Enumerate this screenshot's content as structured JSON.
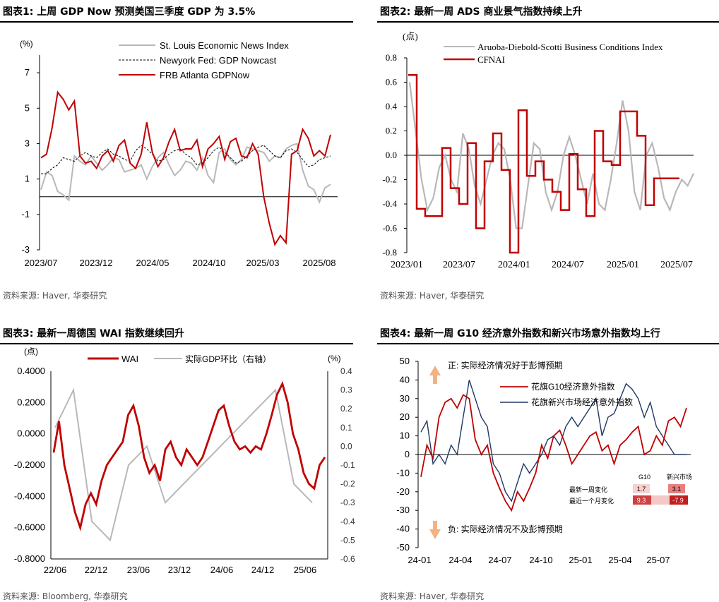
{
  "colors": {
    "red": "#c00000",
    "grey": "#b8b8b8",
    "navy": "#1f3864",
    "dash": "#000000",
    "peach": "#f4b183"
  },
  "chart1": {
    "title": "图表1:  上周 GDP Now 预测美国三季度 GDP 为 3.5%",
    "source": "资料来源: Haver, 华泰研究",
    "unit": "(%)",
    "legend": [
      "St. Louis Economic News Index",
      "Newyork Fed: GDP Nowcast",
      "FRB Atlanta GDPNow"
    ],
    "chart_data": {
      "type": "line",
      "xlabels": [
        "2023/07",
        "2023/12",
        "2024/05",
        "2024/10",
        "2025/03",
        "2025/08"
      ],
      "yticks": [
        "7",
        "5",
        "3",
        "1",
        "-1",
        "-3"
      ],
      "ylim": [
        -3,
        8
      ],
      "series": [
        {
          "name": "St. Louis Economic News Index",
          "values": [
            0.4,
            1.4,
            1.2,
            0.3,
            0.1,
            -0.2,
            2.3,
            2.0,
            1.8,
            2.3,
            1.9,
            1.5,
            1.8,
            2.2,
            2.1,
            1.4,
            1.5,
            1.6,
            1.8,
            1.0,
            1.7,
            2.2,
            2.5,
            1.8,
            1.2,
            1.5,
            2.0,
            1.9,
            1.5,
            2.2,
            1.2,
            0.8,
            2.5,
            2.7,
            2.1,
            1.8,
            2.1,
            2.8,
            2.7,
            2.6,
            2.5,
            2.0,
            2.3,
            2.2,
            2.7,
            2.9,
            3.0,
            1.5,
            0.6,
            0.4,
            -0.3,
            0.5,
            0.7
          ]
        },
        {
          "name": "Newyork Fed: GDP Nowcast",
          "values": [
            1.3,
            1.3,
            1.6,
            1.8,
            2.2,
            2.1,
            2.0,
            2.3,
            2.5,
            2.3,
            2.2,
            2.5,
            2.7,
            2.4,
            2.3,
            2.1,
            2.0,
            2.6,
            2.9,
            2.7,
            2.4,
            2.0,
            2.1,
            2.4,
            2.6,
            2.7,
            2.4,
            2.2,
            1.8,
            1.9,
            2.2,
            2.6,
            2.8,
            2.5,
            2.2,
            1.9,
            2.0,
            2.3,
            2.6,
            2.8,
            2.9,
            2.6,
            2.3,
            2.2,
            2.6,
            2.7,
            2.5,
            2.1,
            1.7,
            1.8,
            2.1,
            2.2,
            2.3
          ]
        },
        {
          "name": "FRB Atlanta GDPNow",
          "values": [
            2.2,
            2.4,
            3.9,
            5.9,
            5.5,
            4.9,
            5.4,
            2.3,
            1.9,
            2.0,
            1.6,
            2.3,
            2.6,
            2.0,
            2.9,
            3.2,
            1.9,
            1.6,
            2.4,
            4.2,
            2.5,
            1.7,
            2.2,
            3.1,
            3.8,
            2.6,
            2.7,
            2.7,
            3.2,
            1.7,
            2.7,
            3.0,
            3.4,
            2.1,
            3.1,
            3.3,
            2.3,
            2.2,
            3.0,
            2.4,
            0.0,
            -1.5,
            -2.7,
            -2.2,
            -2.6,
            2.4,
            2.6,
            3.8,
            3.3,
            2.3,
            2.6,
            2.3,
            3.5
          ]
        }
      ]
    }
  },
  "chart2": {
    "title": "图表2:  最新一周 ADS 商业景气指数持续上升",
    "source": "资料来源: Haver, 华泰研究",
    "unit": "(点)",
    "legend": [
      "Aruoba-Diebold-Scotti Business Conditions Index",
      "CFNAI"
    ],
    "chart_data": {
      "type": "line",
      "xlabels": [
        "2023/01",
        "2023/07",
        "2024/01",
        "2024/07",
        "2025/01",
        "2025/07"
      ],
      "yticks": [
        "0.8",
        "0.6",
        "0.4",
        "0.2",
        "0.0",
        "-0.2",
        "-0.4",
        "-0.6",
        "-0.8"
      ],
      "ylim": [
        -0.8,
        0.8
      ],
      "series": [
        {
          "name": "Aruoba-Diebold-Scotti Business Conditions Index",
          "values": [
            0.6,
            0.2,
            -0.2,
            -0.45,
            -0.35,
            -0.1,
            0.0,
            -0.2,
            -0.3,
            0.18,
            0.05,
            -0.25,
            -0.4,
            -0.2,
            0.0,
            0.1,
            0.05,
            -0.2,
            -0.6,
            -0.6,
            -0.25,
            0.1,
            0.05,
            -0.3,
            -0.45,
            -0.3,
            0.0,
            0.15,
            0.0,
            -0.2,
            -0.4,
            -0.15,
            -0.4,
            -0.45,
            -0.2,
            0.1,
            0.45,
            0.2,
            -0.3,
            -0.45,
            0.0,
            0.1,
            -0.1,
            -0.35,
            -0.45,
            -0.3,
            -0.2,
            -0.25,
            -0.15
          ]
        },
        {
          "name": "CFNAI",
          "values": [
            0.66,
            -0.44,
            -0.5,
            -0.5,
            0.06,
            -0.27,
            -0.4,
            0.1,
            -0.6,
            -0.05,
            0.18,
            -0.12,
            -0.8,
            0.37,
            -0.17,
            -0.05,
            -0.2,
            -0.3,
            -0.45,
            0.01,
            -0.28,
            -0.5,
            0.2,
            -0.05,
            -0.08,
            0.36,
            0.36,
            0.16,
            -0.41,
            -0.19,
            -0.19,
            -0.19
          ]
        }
      ]
    }
  },
  "chart3": {
    "title": "图表3:  最新一周德国 WAI 指数继续回升",
    "source": "资料来源: Bloomberg, 华泰研究",
    "unit_left": "(点)",
    "unit_right": "(%)",
    "legend": [
      "WAI",
      "实际GDP环比（右轴）"
    ],
    "chart_data": {
      "type": "line",
      "xlabels": [
        "22/06",
        "22/12",
        "23/06",
        "23/12",
        "24/06",
        "24/12",
        "25/06"
      ],
      "yticks_left": [
        "0.4000",
        "0.2000",
        "0.0000",
        "-0.2000",
        "-0.4000",
        "-0.6000",
        "-0.8000"
      ],
      "yticks_right": [
        "0.4",
        "0.3",
        "0.2",
        "0.1",
        "0.0",
        "-0.1",
        "-0.2",
        "-0.3",
        "-0.4",
        "-0.5",
        "-0.6"
      ],
      "ylim_left": [
        -0.8,
        0.4
      ],
      "ylim_right": [
        -0.6,
        0.4
      ],
      "series": [
        {
          "name": "WAI",
          "axis": "left",
          "values": [
            -0.12,
            0.08,
            -0.2,
            -0.35,
            -0.5,
            -0.6,
            -0.45,
            -0.38,
            -0.45,
            -0.3,
            -0.2,
            -0.15,
            -0.1,
            -0.05,
            0.12,
            0.18,
            0.05,
            -0.15,
            -0.25,
            -0.2,
            -0.3,
            -0.1,
            -0.05,
            -0.15,
            -0.2,
            -0.1,
            -0.15,
            -0.2,
            -0.15,
            -0.05,
            0.05,
            0.15,
            0.18,
            0.05,
            -0.05,
            -0.1,
            -0.08,
            -0.12,
            -0.08,
            -0.1,
            0.0,
            0.12,
            0.25,
            0.32,
            0.2,
            0.0,
            -0.1,
            -0.25,
            -0.32,
            -0.35,
            -0.2,
            -0.15
          ]
        },
        {
          "name": "实际GDP环比（右轴）",
          "axis": "right",
          "values": [
            0.1,
            0.3,
            -0.4,
            -0.5,
            -0.1,
            0.0,
            -0.3,
            -0.2,
            -0.1,
            0.0,
            0.1,
            0.2,
            0.3,
            -0.2,
            -0.3
          ]
        }
      ]
    }
  },
  "chart4": {
    "title": "图表4:  最新一周 G10 经济意外指数和新兴市场意外指数均上行",
    "source": "资料来源: Haver, 华泰研究",
    "note_top": "正: 实际经济情况好于彭博预期",
    "note_bottom": "负: 实际经济情况不及彭博预期",
    "legend": [
      "花旗G10经济意外指数",
      "花旗新兴市场经济意外指数"
    ],
    "table": {
      "col1": "G10",
      "col2": "新兴市场",
      "row1_label": "最新一周变化",
      "row2_label": "最近一个月变化",
      "row1_g10": "1.7",
      "row1_em": "3.1",
      "row2_g10": "9.3",
      "row2_em": "-7.9"
    },
    "chart_data": {
      "type": "line",
      "xlabels": [
        "24-01",
        "24-04",
        "24-07",
        "24-10",
        "25-01",
        "25-04",
        "25-07"
      ],
      "yticks": [
        "50",
        "40",
        "30",
        "20",
        "10",
        "0",
        "-10",
        "-20",
        "-30",
        "-40",
        "-50"
      ],
      "ylim": [
        -50,
        50
      ],
      "series": [
        {
          "name": "花旗G10经济意外指数",
          "values": [
            -12,
            5,
            -2,
            20,
            28,
            30,
            25,
            32,
            30,
            8,
            0,
            5,
            -10,
            -18,
            -25,
            -30,
            -20,
            -25,
            -18,
            -10,
            5,
            -2,
            10,
            13,
            5,
            -5,
            0,
            5,
            10,
            12,
            2,
            5,
            -5,
            5,
            8,
            12,
            15,
            0,
            2,
            10,
            5,
            18,
            20,
            15,
            25
          ]
        },
        {
          "name": "花旗新兴市场经济意外指数",
          "values": [
            12,
            18,
            -5,
            0,
            -5,
            5,
            0,
            20,
            40,
            30,
            20,
            15,
            -5,
            -10,
            -20,
            -25,
            -15,
            -5,
            -10,
            -5,
            0,
            8,
            10,
            5,
            15,
            20,
            15,
            20,
            25,
            30,
            10,
            20,
            22,
            30,
            38,
            35,
            30,
            20,
            28,
            15,
            10,
            5,
            0,
            0,
            0
          ]
        }
      ]
    }
  }
}
